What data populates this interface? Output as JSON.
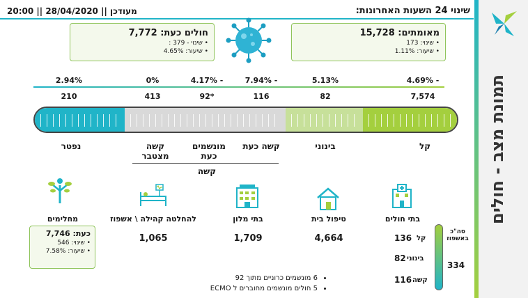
{
  "header": {
    "title": "שינוי 24 השעות האחרונות:",
    "update": "מעודכן || 28/04/2020 || 20:00"
  },
  "side": {
    "title": "תמונת מצב - חולים"
  },
  "confirmed": {
    "title": "מאומתים: 15,728",
    "change": "• שינוי: 173",
    "rate": "• שיעור: 1.11%"
  },
  "sick_now": {
    "title": "חולים כעת: 7,772",
    "change": "• שינוי - 379 :",
    "rate": "• שיעור: 4.65%"
  },
  "recovered": {
    "label": "מחלימים",
    "title": "כעת: 7,746",
    "change": "• שינוי: 546",
    "rate": "• שיעור: 7.58%"
  },
  "percents": [
    "4.69% -",
    "5.13%",
    "7.94% -",
    "4.17% -",
    "0%",
    "2.94%"
  ],
  "counts": [
    "7,574",
    "82",
    "116",
    "92*",
    "413",
    "210"
  ],
  "categories": {
    "mild": "קל",
    "moderate": "בינוני",
    "severe_now": "קשה כעת",
    "ventilated_now": "מונשמים כעת",
    "severe_cumulative": "קשה מצטבר",
    "deceased": "נפטר",
    "severe_group": "קשה"
  },
  "facilities": [
    {
      "label": "בתי חולים",
      "icon": "hospital-icon"
    },
    {
      "label": "טיפול בית",
      "value": "4,664",
      "icon": "home-icon"
    },
    {
      "label": "בתי מלון",
      "value": "1,709",
      "icon": "hotel-icon"
    },
    {
      "label": "להחלטה קהילה \\ אשפוז",
      "value": "1,065",
      "icon": "hospital-bed-icon"
    }
  ],
  "hospital": {
    "total_label": "סה\"כ באשפוז",
    "total": "334",
    "mild_label": "קל",
    "mild": "136",
    "moderate_label": "בינוני",
    "moderate": "82",
    "severe_label": "קשה",
    "severe": "116"
  },
  "notes": [
    "6 מונשמים כרוניים מתוך 92",
    "5 חולים מונשמים מחוברים ל ECMO"
  ],
  "colors": {
    "teal": "#20b4c8",
    "green": "#a4cf3e",
    "grey": "#d9d9d9",
    "box_border": "#8fc45b"
  }
}
